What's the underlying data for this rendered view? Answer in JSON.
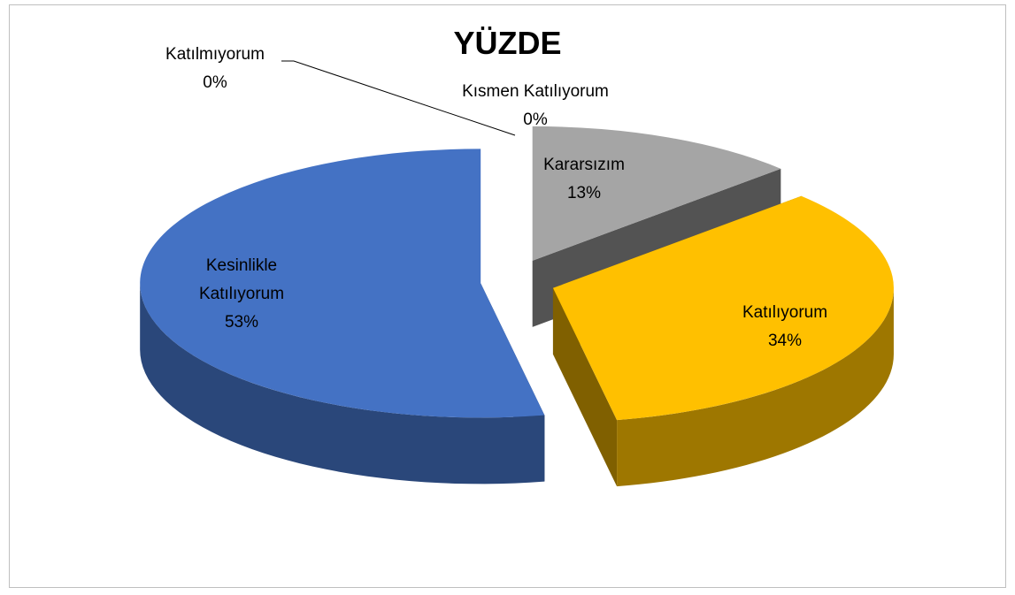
{
  "chart_data": {
    "type": "pie",
    "title": "YÜZDE",
    "categories": [
      "Katılmıyorum",
      "Kısmen Katılıyorum",
      "Kararsızım",
      "Katılıyorum",
      "Kesinlikle Katılıyorum"
    ],
    "values": [
      0,
      0,
      13,
      34,
      53
    ],
    "value_labels": [
      "0%",
      "0%",
      "13%",
      "34%",
      "53%"
    ],
    "colors": [
      "#ed7d31",
      "#5b9bd5",
      "#a5a5a5",
      "#ffc000",
      "#4472c4"
    ]
  }
}
